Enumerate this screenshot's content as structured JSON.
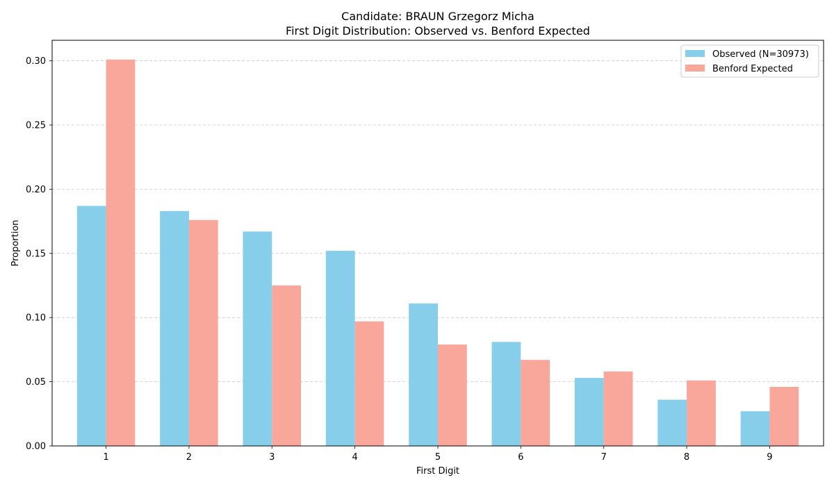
{
  "chart_data": {
    "type": "bar",
    "title_lines": [
      "Candidate: BRAUN Grzegorz Micha",
      "First Digit Distribution: Observed vs. Benford Expected"
    ],
    "xlabel": "First Digit",
    "ylabel": "Proportion",
    "categories": [
      "1",
      "2",
      "3",
      "4",
      "5",
      "6",
      "7",
      "8",
      "9"
    ],
    "series": [
      {
        "name": "Observed (N=30973)",
        "color": "#87ceeb",
        "values": [
          0.187,
          0.183,
          0.167,
          0.152,
          0.111,
          0.081,
          0.053,
          0.036,
          0.027
        ]
      },
      {
        "name": "Benford Expected",
        "color": "#f9a69b",
        "values": [
          0.301,
          0.176,
          0.125,
          0.097,
          0.079,
          0.067,
          0.058,
          0.051,
          0.046
        ]
      }
    ],
    "ylim": [
      0,
      0.316
    ],
    "yticks": [
      "0.00",
      "0.05",
      "0.10",
      "0.15",
      "0.20",
      "0.25",
      "0.30"
    ],
    "grid": "y-dashed",
    "legend_position": "top-right"
  }
}
